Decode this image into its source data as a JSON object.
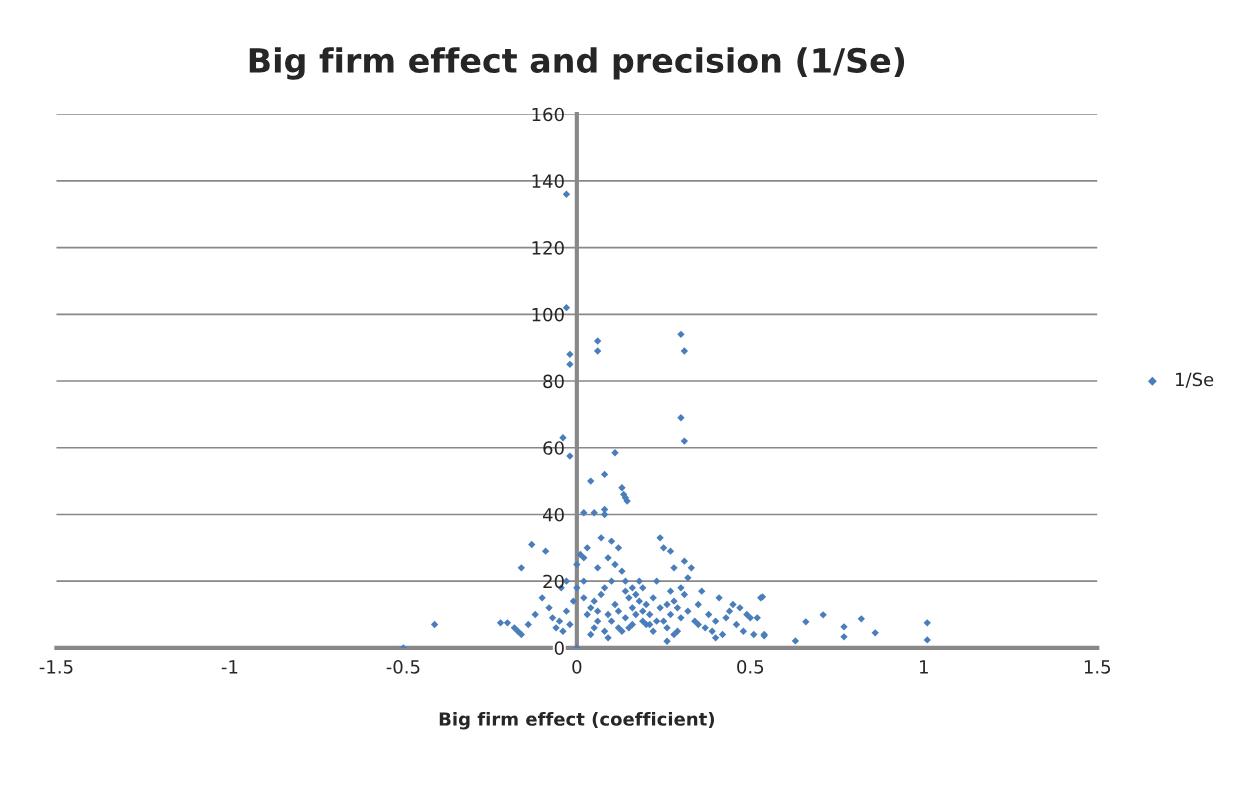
{
  "chart_data": {
    "type": "scatter",
    "title": "Big firm effect and precision (1/Se)",
    "xlabel": "Big firm effect (coefficient)",
    "xlim": [
      -1.5,
      1.5
    ],
    "xticks": [
      -1.5,
      -1,
      -0.5,
      0,
      0.5,
      1,
      1.5
    ],
    "ylim": [
      0,
      160
    ],
    "yticks": [
      0,
      20,
      40,
      60,
      80,
      100,
      120,
      140,
      160
    ],
    "grid": "y",
    "legend": "right",
    "marker": "diamond",
    "series": [
      {
        "name": "1/Se",
        "color": "#4a7ebb",
        "x": [
          -0.03,
          -0.03,
          -0.02,
          -0.02,
          0.06,
          0.06,
          0.3,
          0.31,
          0.3,
          0.31,
          -0.04,
          -0.02,
          0.11,
          0.04,
          0.08,
          0.13,
          0.135,
          0.14,
          0.145,
          0.02,
          0.05,
          0.08,
          0.08,
          -0.5,
          -0.41,
          0.66,
          0.71,
          0.77,
          0.77,
          0.82,
          0.86,
          1.01,
          1.01,
          0.63,
          0.535,
          0.54,
          -0.045,
          -0.03,
          -0.08,
          -0.05,
          -0.06,
          -0.04,
          -0.07,
          -0.03,
          -0.02,
          -0.01,
          0,
          0,
          0,
          -0.1,
          -0.12,
          -0.09,
          -0.17,
          -0.18,
          -0.16,
          -0.14,
          -0.22,
          -0.2,
          -0.13,
          -0.16,
          0.01,
          0.02,
          0.03,
          0.02,
          0.03,
          0.04,
          0.05,
          0.06,
          0.07,
          0.08,
          0.09,
          0.08,
          0.06,
          0.09,
          0.05,
          0.07,
          0.1,
          0.04,
          0.1,
          0.1,
          0.02,
          0.06,
          0.09,
          0.11,
          0.12,
          0.13,
          0.14,
          0.15,
          0.16,
          0.17,
          0.18,
          0.19,
          0.2,
          0.12,
          0.14,
          0.16,
          0.13,
          0.18,
          0.11,
          0.15,
          0.17,
          0.19,
          0.2,
          0.12,
          0.16,
          0.19,
          0.14,
          0.21,
          0.22,
          0.23,
          0.24,
          0.25,
          0.26,
          0.27,
          0.28,
          0.29,
          0.3,
          0.24,
          0.25,
          0.27,
          0.28,
          0.22,
          0.23,
          0.26,
          0.27,
          0.29,
          0.3,
          0.21,
          0.26,
          0.28,
          0.31,
          0.32,
          0.33,
          0.34,
          0.35,
          0.36,
          0.37,
          0.38,
          0.39,
          0.4,
          0.41,
          0.42,
          0.43,
          0.44,
          0.45,
          0.46,
          0.47,
          0.48,
          0.49,
          0.5,
          0.51,
          0.52,
          0.53,
          0.54,
          0.32,
          0.35,
          0.4,
          0.31
        ],
        "values": [
          136,
          102,
          88,
          85,
          92,
          89,
          94,
          89,
          69,
          62,
          63,
          57.5,
          58.5,
          50,
          52,
          48,
          46,
          45,
          44,
          40.5,
          40.5,
          41.5,
          40,
          0,
          7,
          7.8,
          9.9,
          6.3,
          3.3,
          8.7,
          4.5,
          7.5,
          2.4,
          2.1,
          15.3,
          3.6,
          18,
          20,
          12,
          8,
          6,
          5,
          9,
          11,
          7,
          14,
          25,
          18,
          0,
          15,
          10,
          29,
          5,
          6,
          4,
          7,
          7.5,
          7.5,
          31,
          24,
          28,
          27,
          30,
          20,
          10,
          12,
          6,
          8,
          16,
          5,
          10,
          18,
          24,
          27,
          14,
          33,
          32,
          4,
          8,
          20,
          15,
          11,
          3,
          25,
          30,
          23,
          17,
          15,
          12,
          10,
          14,
          8,
          13,
          6,
          9,
          18,
          5,
          20,
          13,
          6,
          16,
          11,
          7,
          11,
          7,
          18,
          20,
          10,
          15,
          20,
          12,
          8,
          6,
          10,
          14,
          5,
          9,
          33,
          30,
          29,
          24,
          5,
          8,
          2,
          17,
          12,
          18,
          7,
          13,
          4,
          16,
          11,
          24,
          8,
          13,
          17,
          6,
          10,
          5,
          8,
          15,
          4,
          9,
          11,
          13,
          7,
          12,
          5,
          10,
          9,
          4,
          9,
          15,
          4,
          21,
          7,
          3,
          26
        ]
      }
    ]
  }
}
